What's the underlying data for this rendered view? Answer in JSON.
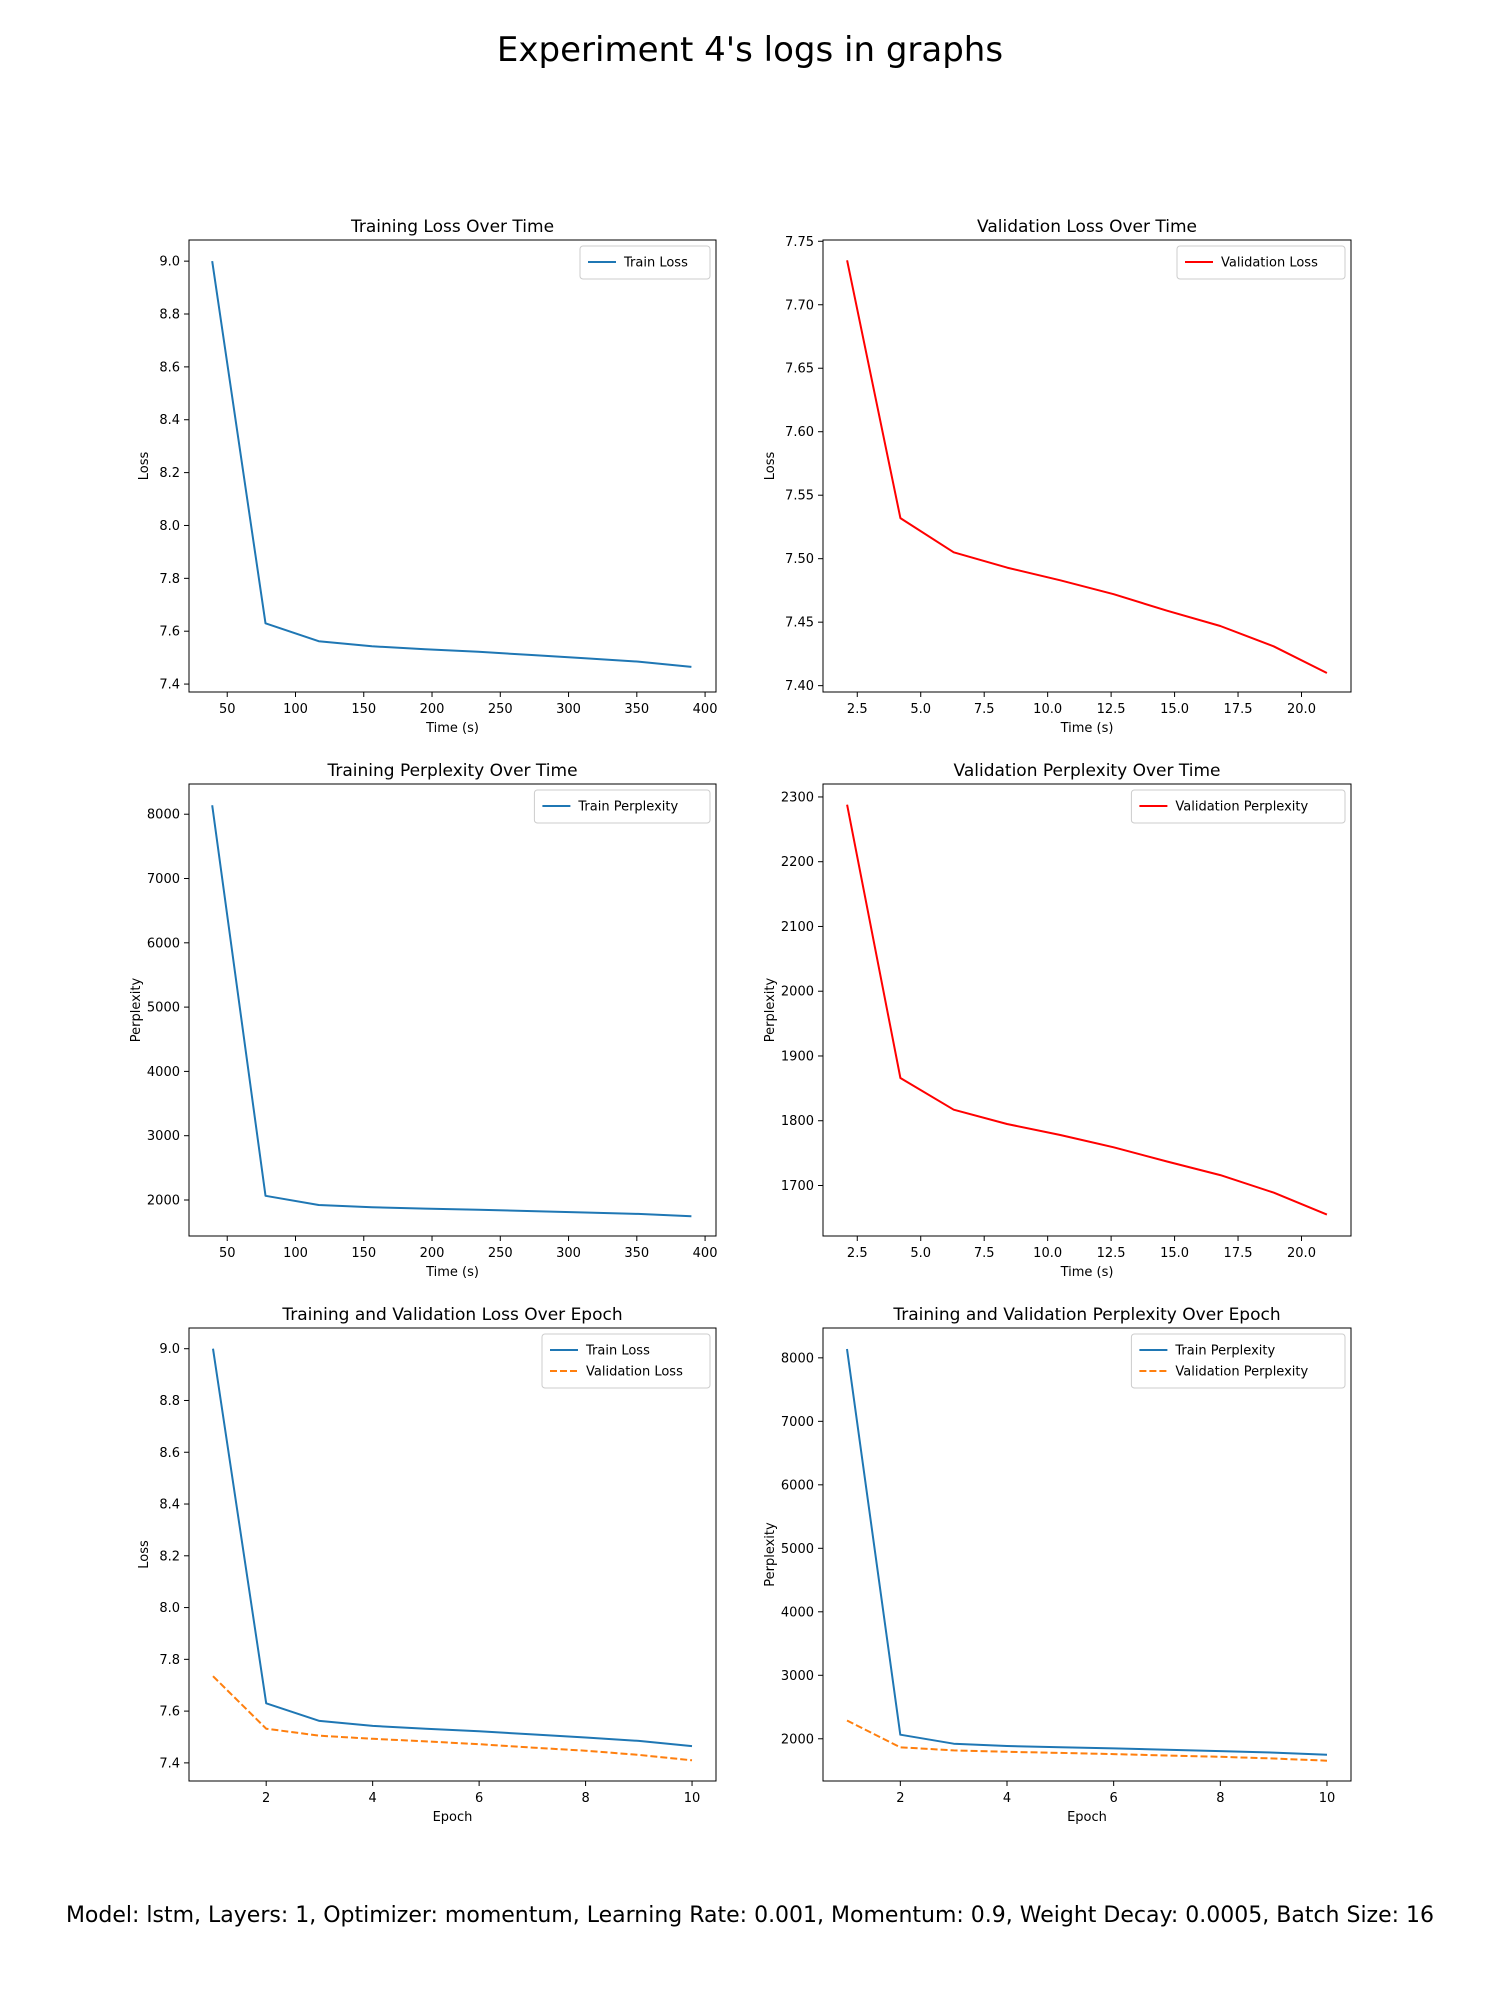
{
  "suptitle": "Experiment 4's logs in graphs",
  "footer": "Model: lstm, Layers: 1, Optimizer: momentum, Learning Rate: 0.001, Momentum: 0.9, Weight Decay: 0.0005, Batch Size: 16",
  "chart_data": [
    {
      "type": "line",
      "title": "Training Loss Over Time",
      "xlabel": "Time (s)",
      "ylabel": "Loss",
      "xlim": [
        22,
        408
      ],
      "ylim": [
        7.37,
        9.08
      ],
      "xticks": [
        50,
        100,
        150,
        200,
        250,
        300,
        350,
        400
      ],
      "yticks": [
        7.4,
        7.6,
        7.8,
        8.0,
        8.2,
        8.4,
        8.6,
        8.8,
        9.0
      ],
      "xtick_labels": [
        "50",
        "100",
        "150",
        "200",
        "250",
        "300",
        "350",
        "400"
      ],
      "ytick_labels": [
        "7.4",
        "7.6",
        "7.8",
        "8.0",
        "8.2",
        "8.4",
        "8.6",
        "8.8",
        "9.0"
      ],
      "legend_position": "upper right",
      "series": [
        {
          "name": "Train Loss",
          "color": "#1f77b4",
          "dash": "solid",
          "x": [
            39,
            78,
            117,
            156,
            195,
            234,
            273,
            312,
            351,
            390
          ],
          "y": [
            9.0,
            7.63,
            7.562,
            7.543,
            7.532,
            7.522,
            7.51,
            7.498,
            7.485,
            7.465
          ]
        }
      ]
    },
    {
      "type": "line",
      "title": "Validation Loss Over Time",
      "xlabel": "Time (s)",
      "ylabel": "Loss",
      "xlim": [
        1.15,
        21.95
      ],
      "ylim": [
        7.395,
        7.751
      ],
      "xticks": [
        2.5,
        5.0,
        7.5,
        10.0,
        12.5,
        15.0,
        17.5,
        20.0
      ],
      "yticks": [
        7.4,
        7.45,
        7.5,
        7.55,
        7.6,
        7.65,
        7.7,
        7.75
      ],
      "xtick_labels": [
        "2.5",
        "5.0",
        "7.5",
        "10.0",
        "12.5",
        "15.0",
        "17.5",
        "20.0"
      ],
      "ytick_labels": [
        "7.40",
        "7.45",
        "7.50",
        "7.55",
        "7.60",
        "7.65",
        "7.70",
        "7.75"
      ],
      "legend_position": "upper right",
      "series": [
        {
          "name": "Validation Loss",
          "color": "#ff0000",
          "dash": "solid",
          "x": [
            2.1,
            4.2,
            6.3,
            8.4,
            10.5,
            12.6,
            14.7,
            16.8,
            18.9,
            21.0
          ],
          "y": [
            7.735,
            7.532,
            7.505,
            7.493,
            7.483,
            7.472,
            7.459,
            7.447,
            7.431,
            7.41
          ]
        }
      ]
    },
    {
      "type": "line",
      "title": "Training Perplexity Over Time",
      "xlabel": "Time (s)",
      "ylabel": "Perplexity",
      "xlim": [
        22,
        408
      ],
      "ylim": [
        1440,
        8470
      ],
      "xticks": [
        50,
        100,
        150,
        200,
        250,
        300,
        350,
        400
      ],
      "yticks": [
        2000,
        3000,
        4000,
        5000,
        6000,
        7000,
        8000
      ],
      "xtick_labels": [
        "50",
        "100",
        "150",
        "200",
        "250",
        "300",
        "350",
        "400"
      ],
      "ytick_labels": [
        "2000",
        "3000",
        "4000",
        "5000",
        "6000",
        "7000",
        "8000"
      ],
      "legend_position": "upper right",
      "series": [
        {
          "name": "Train Perplexity",
          "color": "#1f77b4",
          "dash": "solid",
          "x": [
            39,
            78,
            117,
            156,
            195,
            234,
            273,
            312,
            351,
            390
          ],
          "y": [
            8140,
            2065,
            1922,
            1886,
            1866,
            1849,
            1828,
            1806,
            1783,
            1748
          ]
        }
      ]
    },
    {
      "type": "line",
      "title": "Validation Perplexity Over Time",
      "xlabel": "Time (s)",
      "ylabel": "Perplexity",
      "xlim": [
        1.15,
        21.95
      ],
      "ylim": [
        1622,
        2320
      ],
      "xticks": [
        2.5,
        5.0,
        7.5,
        10.0,
        12.5,
        15.0,
        17.5,
        20.0
      ],
      "yticks": [
        1700,
        1800,
        1900,
        2000,
        2100,
        2200,
        2300
      ],
      "xtick_labels": [
        "2.5",
        "5.0",
        "7.5",
        "10.0",
        "12.5",
        "15.0",
        "17.5",
        "20.0"
      ],
      "ytick_labels": [
        "1700",
        "1800",
        "1900",
        "2000",
        "2100",
        "2200",
        "2300"
      ],
      "legend_position": "upper right",
      "series": [
        {
          "name": "Validation Perplexity",
          "color": "#ff0000",
          "dash": "solid",
          "x": [
            2.1,
            4.2,
            6.3,
            8.4,
            10.5,
            12.6,
            14.7,
            16.8,
            18.9,
            21.0
          ],
          "y": [
            2288,
            1866,
            1817,
            1795,
            1778,
            1759,
            1737,
            1716,
            1689,
            1655
          ]
        }
      ]
    },
    {
      "type": "line",
      "title": "Training and Validation Loss Over Epoch",
      "xlabel": "Epoch",
      "ylabel": "Loss",
      "xlim": [
        0.55,
        10.45
      ],
      "ylim": [
        7.33,
        9.08
      ],
      "xticks": [
        2,
        4,
        6,
        8,
        10
      ],
      "yticks": [
        7.4,
        7.6,
        7.8,
        8.0,
        8.2,
        8.4,
        8.6,
        8.8,
        9.0
      ],
      "xtick_labels": [
        "2",
        "4",
        "6",
        "8",
        "10"
      ],
      "ytick_labels": [
        "7.4",
        "7.6",
        "7.8",
        "8.0",
        "8.2",
        "8.4",
        "8.6",
        "8.8",
        "9.0"
      ],
      "legend_position": "upper right",
      "series": [
        {
          "name": "Train Loss",
          "color": "#1f77b4",
          "dash": "solid",
          "x": [
            1,
            2,
            3,
            4,
            5,
            6,
            7,
            8,
            9,
            10
          ],
          "y": [
            9.0,
            7.63,
            7.562,
            7.543,
            7.532,
            7.522,
            7.51,
            7.498,
            7.485,
            7.465
          ]
        },
        {
          "name": "Validation Loss",
          "color": "#ff7f0e",
          "dash": "dashed",
          "x": [
            1,
            2,
            3,
            4,
            5,
            6,
            7,
            8,
            9,
            10
          ],
          "y": [
            7.735,
            7.532,
            7.505,
            7.493,
            7.483,
            7.472,
            7.459,
            7.447,
            7.431,
            7.41
          ]
        }
      ]
    },
    {
      "type": "line",
      "title": "Training and Validation Perplexity Over Epoch",
      "xlabel": "Epoch",
      "ylabel": "Perplexity",
      "xlim": [
        0.55,
        10.45
      ],
      "ylim": [
        1335,
        8470
      ],
      "xticks": [
        2,
        4,
        6,
        8,
        10
      ],
      "yticks": [
        2000,
        3000,
        4000,
        5000,
        6000,
        7000,
        8000
      ],
      "xtick_labels": [
        "2",
        "4",
        "6",
        "8",
        "10"
      ],
      "ytick_labels": [
        "2000",
        "3000",
        "4000",
        "5000",
        "6000",
        "7000",
        "8000"
      ],
      "legend_position": "upper right",
      "series": [
        {
          "name": "Train Perplexity",
          "color": "#1f77b4",
          "dash": "solid",
          "x": [
            1,
            2,
            3,
            4,
            5,
            6,
            7,
            8,
            9,
            10
          ],
          "y": [
            8140,
            2065,
            1922,
            1886,
            1866,
            1849,
            1828,
            1806,
            1783,
            1748
          ]
        },
        {
          "name": "Validation Perplexity",
          "color": "#ff7f0e",
          "dash": "dashed",
          "x": [
            1,
            2,
            3,
            4,
            5,
            6,
            7,
            8,
            9,
            10
          ],
          "y": [
            2288,
            1866,
            1817,
            1795,
            1778,
            1759,
            1737,
            1716,
            1689,
            1655
          ]
        }
      ]
    }
  ]
}
